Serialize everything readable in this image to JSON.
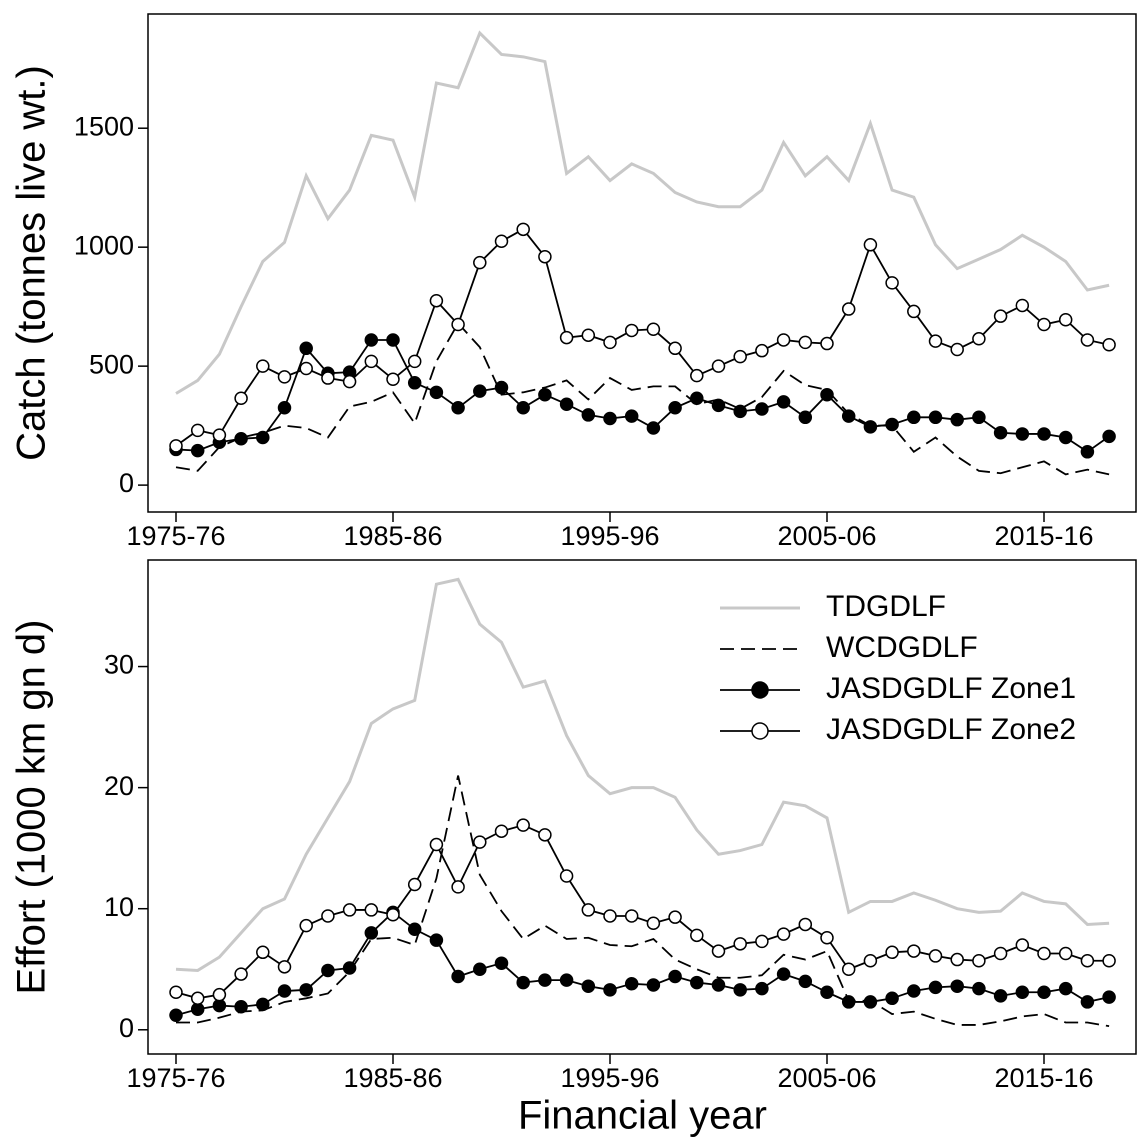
{
  "chart_data": [
    {
      "type": "line",
      "ylabel": "Catch (tonnes live wt.)",
      "categories": [
        "1975-76",
        null,
        null,
        null,
        null,
        null,
        null,
        null,
        null,
        null,
        "1985-86",
        null,
        null,
        null,
        null,
        null,
        null,
        null,
        null,
        null,
        "1995-96",
        null,
        null,
        null,
        null,
        null,
        null,
        null,
        null,
        null,
        "2005-06",
        null,
        null,
        null,
        null,
        null,
        null,
        null,
        null,
        null,
        "2015-16",
        null,
        null,
        null
      ],
      "ylim": [
        -113,
        1980
      ],
      "yticks": [
        0,
        500,
        1000,
        1500
      ],
      "series": [
        {
          "color": "#c8c8c8",
          "style": "solid",
          "marker": "none",
          "values": [
            385,
            440,
            550,
            750,
            940,
            1020,
            1300,
            1120,
            1240,
            1470,
            1450,
            1210,
            1690,
            1670,
            1900,
            1810,
            1800,
            1780,
            1310,
            1380,
            1280,
            1350,
            1310,
            1230,
            1190,
            1170,
            1170,
            1240,
            1440,
            1300,
            1380,
            1280,
            1520,
            1240,
            1210,
            1010,
            910,
            950,
            990,
            1050,
            1000,
            940,
            820,
            840
          ]
        },
        {
          "color": "#000000",
          "style": "dashed",
          "marker": "none",
          "values": [
            75,
            60,
            160,
            200,
            220,
            250,
            240,
            200,
            330,
            350,
            390,
            260,
            520,
            680,
            580,
            380,
            390,
            410,
            440,
            360,
            450,
            400,
            415,
            415,
            340,
            360,
            320,
            370,
            480,
            420,
            400,
            300,
            250,
            250,
            140,
            200,
            120,
            60,
            50,
            75,
            100,
            45,
            65,
            45
          ]
        },
        {
          "color": "#000000",
          "style": "solid",
          "marker": "filled",
          "values": [
            150,
            145,
            180,
            195,
            200,
            325,
            575,
            470,
            475,
            610,
            610,
            430,
            390,
            325,
            395,
            410,
            325,
            380,
            340,
            295,
            280,
            290,
            240,
            325,
            365,
            335,
            310,
            320,
            350,
            285,
            380,
            290,
            245,
            255,
            285,
            285,
            275,
            285,
            220,
            215,
            215,
            200,
            140,
            205
          ]
        },
        {
          "color": "#000000",
          "style": "solid",
          "marker": "open",
          "values": [
            165,
            230,
            210,
            365,
            500,
            455,
            490,
            450,
            435,
            520,
            445,
            520,
            775,
            675,
            935,
            1025,
            1075,
            960,
            620,
            630,
            600,
            650,
            655,
            575,
            460,
            500,
            540,
            565,
            610,
            600,
            595,
            740,
            1010,
            850,
            730,
            605,
            570,
            615,
            710,
            755,
            675,
            695,
            610,
            590
          ]
        }
      ]
    },
    {
      "type": "line",
      "ylabel": "Effort (1000 km gn d)",
      "xlabel": "Financial year",
      "categories": [
        "1975-76",
        null,
        null,
        null,
        null,
        null,
        null,
        null,
        null,
        null,
        "1985-86",
        null,
        null,
        null,
        null,
        null,
        null,
        null,
        null,
        null,
        "1995-96",
        null,
        null,
        null,
        null,
        null,
        null,
        null,
        null,
        null,
        "2005-06",
        null,
        null,
        null,
        null,
        null,
        null,
        null,
        null,
        null,
        "2015-16",
        null,
        null,
        null
      ],
      "ylim": [
        -2,
        38.8
      ],
      "yticks": [
        0,
        10,
        20,
        30
      ],
      "legend": "upper right",
      "series": [
        {
          "name": "TDGDLF",
          "color": "#c8c8c8",
          "style": "solid",
          "marker": "none",
          "values": [
            5,
            4.9,
            6,
            8,
            10,
            10.8,
            14.5,
            17.5,
            20.5,
            25.3,
            26.5,
            27.2,
            36.8,
            37.2,
            33.5,
            32,
            28.3,
            28.8,
            24.3,
            21,
            19.5,
            20,
            20,
            19.2,
            16.5,
            14.5,
            14.8,
            15.3,
            18.8,
            18.5,
            17.5,
            9.7,
            10.6,
            10.6,
            11.3,
            10.7,
            10,
            9.7,
            9.8,
            11.3,
            10.6,
            10.4,
            8.7,
            8.8
          ]
        },
        {
          "name": "WCDGDLF",
          "color": "#000000",
          "style": "dashed",
          "marker": "none",
          "values": [
            0.6,
            0.6,
            1,
            1.5,
            1.6,
            2.3,
            2.6,
            3,
            4.8,
            7.5,
            7.6,
            7,
            12.5,
            21,
            12.8,
            9.8,
            7.5,
            8.6,
            7.5,
            7.6,
            7,
            6.9,
            7.5,
            5.8,
            5,
            4.3,
            4.3,
            4.5,
            6.2,
            5.8,
            6.5,
            2.4,
            2.4,
            1.3,
            1.5,
            0.9,
            0.4,
            0.4,
            0.7,
            1.1,
            1.3,
            0.6,
            0.6,
            0.3
          ]
        },
        {
          "name": "JASDGDLF Zone1",
          "color": "#000000",
          "style": "solid",
          "marker": "filled",
          "values": [
            1.2,
            1.7,
            2,
            1.9,
            2.1,
            3.2,
            3.3,
            4.9,
            5.1,
            8,
            9.7,
            8.3,
            7.4,
            4.4,
            5,
            5.5,
            3.9,
            4.1,
            4.1,
            3.6,
            3.3,
            3.8,
            3.7,
            4.4,
            3.9,
            3.7,
            3.3,
            3.4,
            4.6,
            4,
            3.1,
            2.3,
            2.3,
            2.6,
            3.2,
            3.5,
            3.6,
            3.4,
            2.8,
            3.1,
            3.1,
            3.4,
            2.3,
            2.7
          ]
        },
        {
          "name": "JASDGDLF Zone2",
          "color": "#000000",
          "style": "solid",
          "marker": "open",
          "values": [
            3.1,
            2.6,
            2.9,
            4.6,
            6.4,
            5.2,
            8.6,
            9.4,
            9.9,
            9.9,
            9.5,
            12,
            15.3,
            11.8,
            15.5,
            16.4,
            16.9,
            16.1,
            12.7,
            9.9,
            9.4,
            9.4,
            8.8,
            9.3,
            7.8,
            6.5,
            7.1,
            7.3,
            7.9,
            8.7,
            7.6,
            5,
            5.7,
            6.4,
            6.5,
            6.1,
            5.8,
            5.7,
            6.3,
            7,
            6.3,
            6.3,
            5.7,
            5.7
          ]
        }
      ]
    }
  ]
}
